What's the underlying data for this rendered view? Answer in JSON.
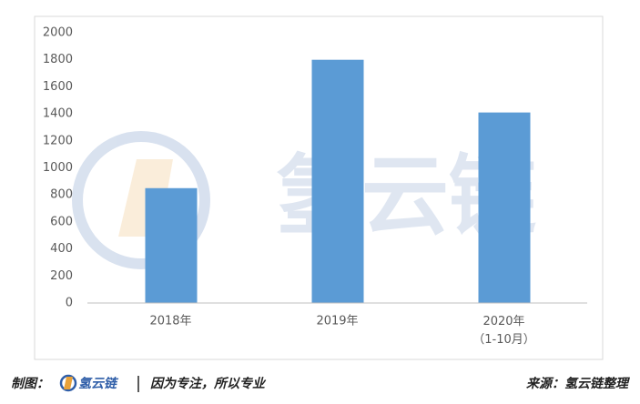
{
  "chart_data": {
    "type": "bar",
    "categories": [
      "2018年",
      "2019年",
      "2020年\n（1-10月）"
    ],
    "values": [
      850,
      1800,
      1410
    ],
    "color": "#5b9bd5",
    "ylim": [
      0,
      2000
    ],
    "yticks": [
      0,
      200,
      400,
      600,
      800,
      1000,
      1200,
      1400,
      1600,
      1800,
      2000
    ],
    "grid": false
  },
  "watermark": "氢云链",
  "footer": {
    "label": "制图：",
    "brand": "氢云链",
    "slogan": "因为专注，所以专业",
    "source": "来源：氢云链整理"
  }
}
